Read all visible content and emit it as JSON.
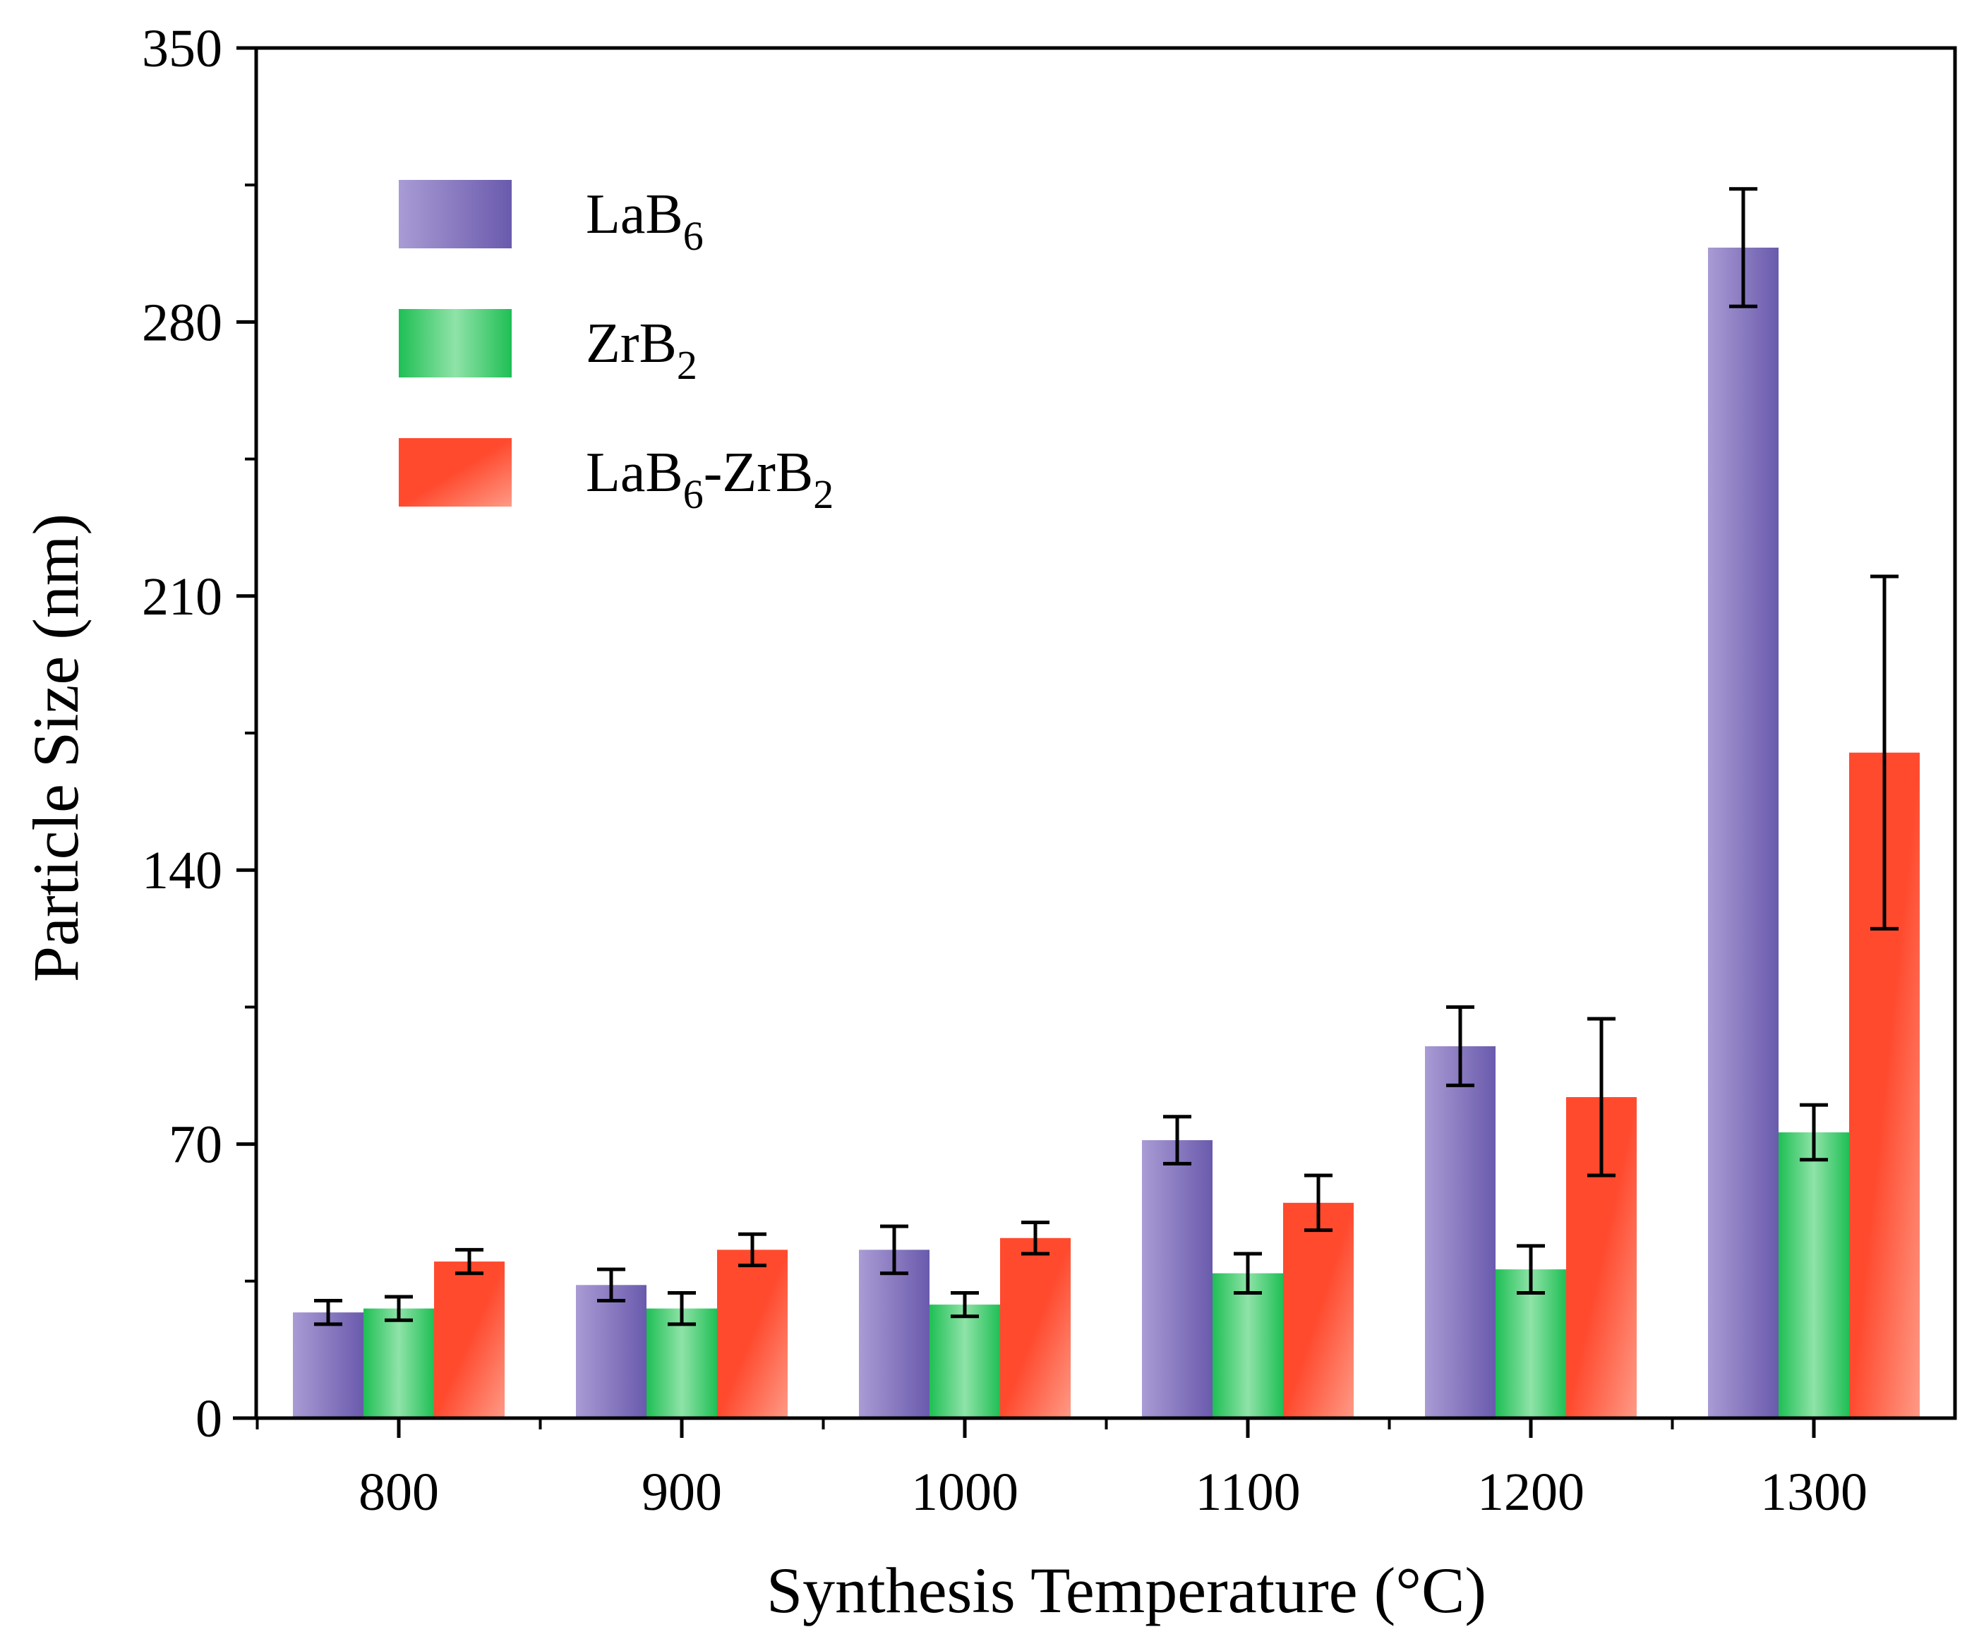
{
  "chart_data": {
    "type": "bar",
    "title": "",
    "xlabel": "Synthesis Temperature (°C)",
    "ylabel": "Particle Size (nm)",
    "categories": [
      "800",
      "900",
      "1000",
      "1100",
      "1200",
      "1300"
    ],
    "ylim": [
      0,
      350
    ],
    "yticks": [
      "0",
      "70",
      "140",
      "210",
      "280",
      "350"
    ],
    "yminor": [
      35,
      105,
      175,
      245,
      315
    ],
    "legend_position": "top-left",
    "series": [
      {
        "name_main": "LaB",
        "name_sub": "6",
        "name_rest": "",
        "name_sub2": "",
        "color_dark": "#6a5aad",
        "color_light": "#a99bd4",
        "values": [
          27,
          34,
          43,
          71,
          95,
          299
        ],
        "errors": [
          3,
          4,
          6,
          6,
          10,
          15
        ]
      },
      {
        "name_main": "ZrB",
        "name_sub": "2",
        "name_rest": "",
        "name_sub2": "",
        "color_dark": "#1fbf55",
        "color_light": "#8fe3a8",
        "values": [
          28,
          28,
          29,
          37,
          38,
          73
        ],
        "errors": [
          3,
          4,
          3,
          5,
          6,
          7
        ]
      },
      {
        "name_main": "LaB",
        "name_sub": "6",
        "name_rest": "-ZrB",
        "name_sub2": "2",
        "color_dark": "#ff4a2e",
        "color_light": "#ff9a86",
        "values": [
          40,
          43,
          46,
          55,
          82,
          170
        ],
        "errors": [
          3,
          4,
          4,
          7,
          20,
          45
        ]
      }
    ]
  }
}
